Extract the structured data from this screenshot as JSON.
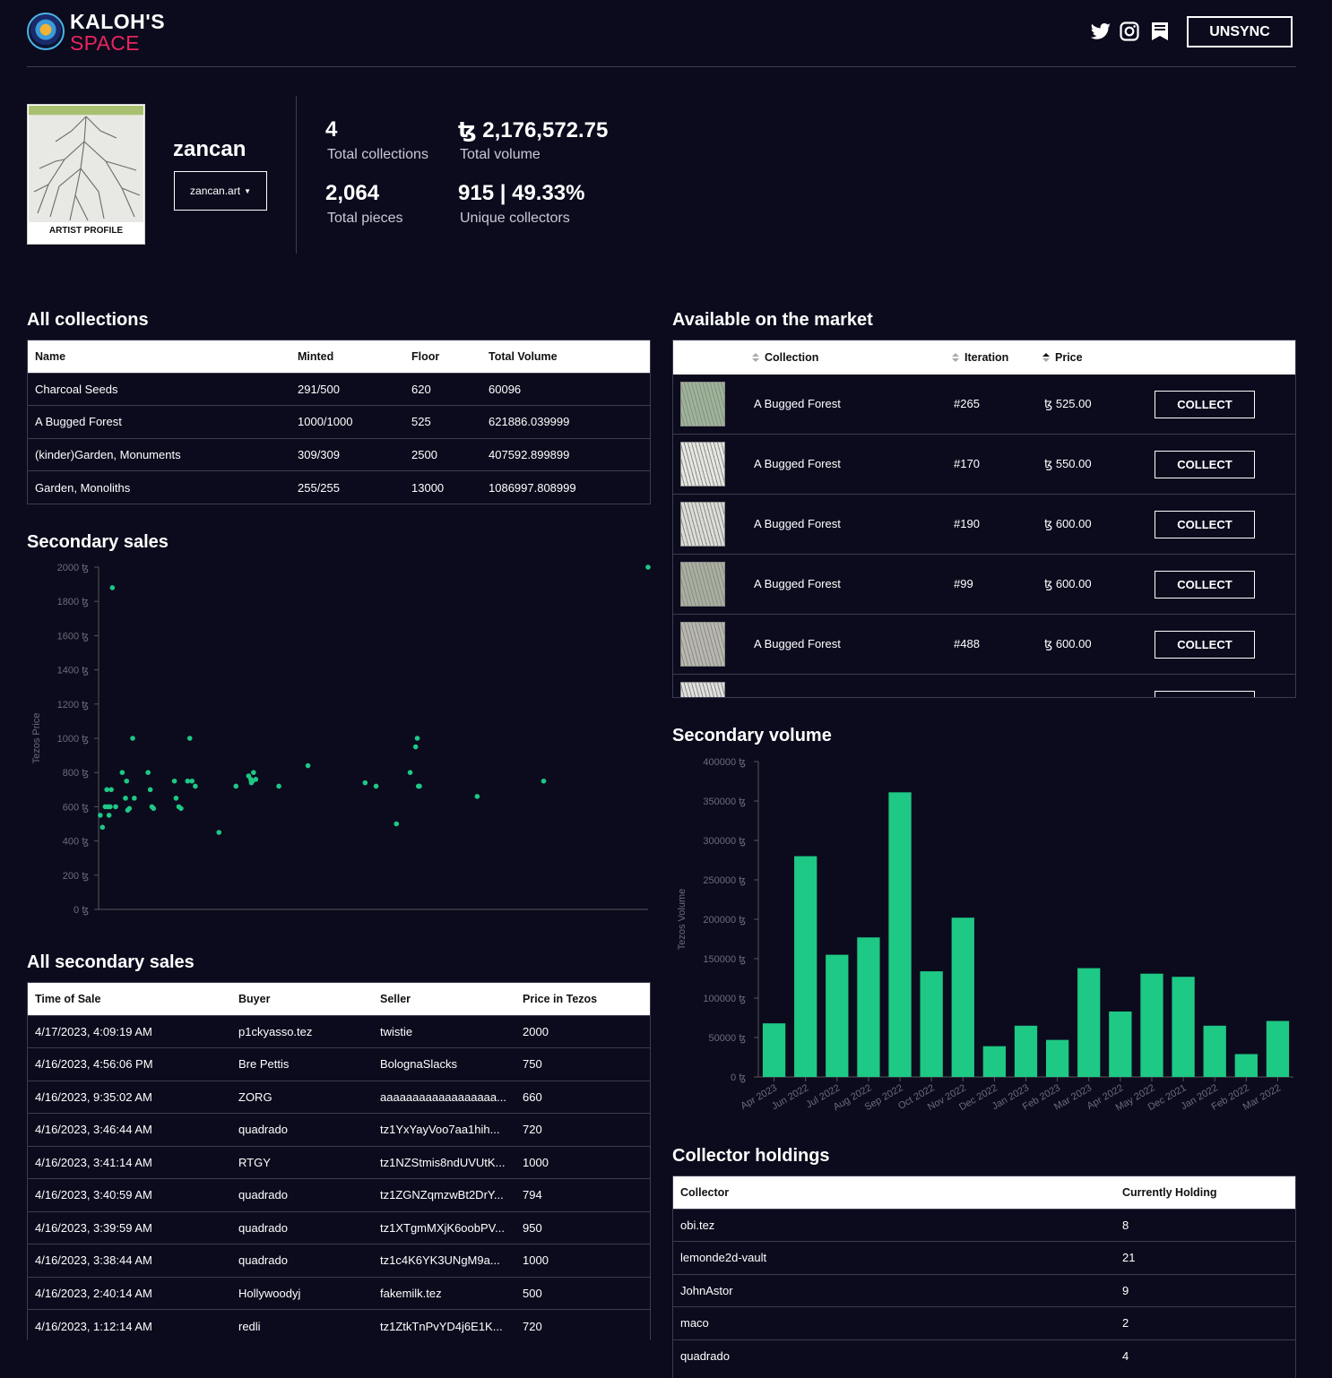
{
  "header": {
    "logo_title": "KALOH'S",
    "logo_sub": "SPACE",
    "unsync_label": "UNSYNC"
  },
  "profile": {
    "caption": "ARTIST PROFILE",
    "name": "zancan",
    "website": "zancan.art",
    "stats": {
      "collections_value": "4",
      "collections_label": "Total collections",
      "volume_value": "ꜩ 2,176,572.75",
      "volume_label": "Total volume",
      "pieces_value": "2,064",
      "pieces_label": "Total pieces",
      "collectors_value": "915 | 49.33%",
      "collectors_label": "Unique collectors"
    }
  },
  "collections": {
    "title": "All collections",
    "headers": [
      "Name",
      "Minted",
      "Floor",
      "Total Volume"
    ],
    "rows": [
      [
        "Charcoal Seeds",
        "291/500",
        "620",
        "60096"
      ],
      [
        "A Bugged Forest",
        "1000/1000",
        "525",
        "621886.039999"
      ],
      [
        "(kinder)Garden, Monuments",
        "309/309",
        "2500",
        "407592.899899"
      ],
      [
        "Garden, Monoliths",
        "255/255",
        "13000",
        "1086997.808999"
      ]
    ]
  },
  "market": {
    "title": "Available on the market",
    "headers": {
      "collection": "Collection",
      "iteration": "Iteration",
      "price": "Price"
    },
    "collect_label": "COLLECT",
    "rows": [
      {
        "collection": "A Bugged Forest",
        "iteration": "#265",
        "price": "ꜩ 525.00"
      },
      {
        "collection": "A Bugged Forest",
        "iteration": "#170",
        "price": "ꜩ 550.00"
      },
      {
        "collection": "A Bugged Forest",
        "iteration": "#190",
        "price": "ꜩ 600.00"
      },
      {
        "collection": "A Bugged Forest",
        "iteration": "#99",
        "price": "ꜩ 600.00"
      },
      {
        "collection": "A Bugged Forest",
        "iteration": "#488",
        "price": "ꜩ 600.00"
      }
    ]
  },
  "scatter_title": "Secondary sales",
  "bar_title": "Secondary volume",
  "chart_data": [
    {
      "type": "scatter",
      "title": "Secondary sales",
      "ylabel": "Tezos Price",
      "ylim": [
        0,
        2000
      ],
      "yticks": [
        "0 ꜩ",
        "200 ꜩ",
        "400 ꜩ",
        "600 ꜩ",
        "800 ꜩ",
        "1000 ꜩ",
        "1200 ꜩ",
        "1400 ꜩ",
        "1600 ꜩ",
        "1800 ꜩ",
        "2000 ꜩ"
      ],
      "xlim": [
        0,
        100
      ],
      "series": [
        {
          "x": [
            0.3,
            0.7,
            1.2,
            1.5,
            1.7,
            1.9,
            2.1,
            2.3,
            2.5,
            3.1,
            4.3,
            4.9,
            5.1,
            5.3,
            5.6,
            6.2,
            6.5,
            9.0,
            9.4,
            9.7,
            10.0,
            13.8,
            14.1,
            14.6,
            15.0,
            16.2,
            16.6,
            17.0,
            17.6,
            21.9,
            25.0,
            27.3,
            27.7,
            27.8,
            28.0,
            28.2,
            28.6,
            32.8,
            38.1,
            48.5,
            50.5,
            54.2,
            56.7,
            57.7,
            58.0,
            58.2,
            58.4,
            68.9,
            81.0,
            100.0
          ],
          "y": [
            550,
            480,
            600,
            700,
            600,
            550,
            600,
            700,
            1880,
            600,
            800,
            650,
            750,
            580,
            590,
            1000,
            650,
            800,
            700,
            600,
            590,
            750,
            650,
            600,
            590,
            750,
            1000,
            750,
            720,
            450,
            720,
            780,
            760,
            740,
            750,
            800,
            760,
            720,
            840,
            740,
            720,
            500,
            800,
            950,
            1000,
            720,
            720,
            660,
            750,
            2000
          ]
        }
      ]
    },
    {
      "type": "bar",
      "title": "Secondary volume",
      "ylabel": "Tezos Volume",
      "ylim": [
        0,
        400000
      ],
      "yticks": [
        "0 ꜩ",
        "50000 ꜩ",
        "100000 ꜩ",
        "150000 ꜩ",
        "200000 ꜩ",
        "250000 ꜩ",
        "300000 ꜩ",
        "350000 ꜩ",
        "400000 ꜩ"
      ],
      "categories": [
        "Apr 2023",
        "Jun 2022",
        "Jul 2022",
        "Aug 2022",
        "Sep 2022",
        "Oct 2022",
        "Nov 2022",
        "Dec 2022",
        "Jan 2023",
        "Feb 2023",
        "Mar 2023",
        "Apr 2022",
        "May 2022",
        "Dec 2021",
        "Jan 2022",
        "Feb 2022",
        "Mar 2022"
      ],
      "values": [
        68000,
        280000,
        155000,
        177000,
        361000,
        134000,
        202000,
        39000,
        65000,
        47000,
        138000,
        83000,
        131000,
        127000,
        65000,
        29000,
        71000
      ]
    }
  ],
  "sales": {
    "title": "All secondary sales",
    "headers": [
      "Time of Sale",
      "Buyer",
      "Seller",
      "Price in Tezos"
    ],
    "rows": [
      [
        "4/17/2023, 4:09:19 AM",
        "p1ckyasso.tez",
        "twistie",
        "2000"
      ],
      [
        "4/16/2023, 4:56:06 PM",
        "Bre Pettis",
        "BolognaSlacks",
        "750"
      ],
      [
        "4/16/2023, 9:35:02 AM",
        "ZORG",
        "aaaaaaaaaaaaaaaaaa...",
        "660"
      ],
      [
        "4/16/2023, 3:46:44 AM",
        "quadrado",
        "tz1YxYayVoo7aa1hih...",
        "720"
      ],
      [
        "4/16/2023, 3:41:14 AM",
        "RTGY",
        "tz1NZStmis8ndUVUtK...",
        "1000"
      ],
      [
        "4/16/2023, 3:40:59 AM",
        "quadrado",
        "tz1ZGNZqmzwBt2DrY...",
        "794"
      ],
      [
        "4/16/2023, 3:39:59 AM",
        "quadrado",
        "tz1XTgmMXjK6oobPV...",
        "950"
      ],
      [
        "4/16/2023, 3:38:44 AM",
        "quadrado",
        "tz1c4K6YK3UNgM9a...",
        "1000"
      ],
      [
        "4/16/2023, 2:40:14 AM",
        "Hollywoodyj",
        "fakemilk.tez",
        "500"
      ],
      [
        "4/16/2023, 1:12:14 AM",
        "redli",
        "tz1ZtkTnPvYD4j6E1K...",
        "720"
      ]
    ]
  },
  "holdings": {
    "title": "Collector holdings",
    "headers": [
      "Collector",
      "Currently Holding"
    ],
    "rows": [
      [
        "obi.tez",
        "8"
      ],
      [
        "lemonde2d-vault",
        "21"
      ],
      [
        "JohnAstor",
        "9"
      ],
      [
        "maco",
        "2"
      ],
      [
        "quadrado",
        "4"
      ]
    ]
  },
  "colors": {
    "accent": "#1ec885",
    "background": "#0b0b1d",
    "brand_pink": "#e8245f"
  },
  "icons": [
    "twitter-icon",
    "instagram-icon",
    "bookmark-icon",
    "sort-icon"
  ]
}
